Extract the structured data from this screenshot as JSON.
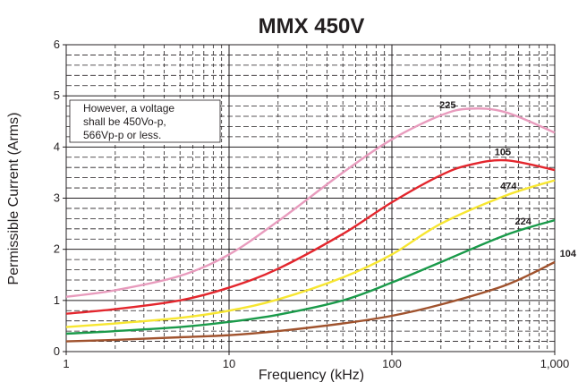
{
  "chart_data": {
    "type": "line",
    "title": "MMX 450V",
    "xlabel": "Frequency (kHz)",
    "ylabel": "Permissible Current (Arms)",
    "x_scale": "log",
    "xlim": [
      1,
      1000
    ],
    "ylim": [
      0,
      6
    ],
    "x_ticks": [
      {
        "value": 1,
        "label": "1"
      },
      {
        "value": 10,
        "label": "10"
      },
      {
        "value": 100,
        "label": "100"
      },
      {
        "value": 1000,
        "label": "1,000"
      }
    ],
    "y_ticks": [
      {
        "value": 0,
        "label": "0"
      },
      {
        "value": 1,
        "label": "1"
      },
      {
        "value": 2,
        "label": "2"
      },
      {
        "value": 3,
        "label": "3"
      },
      {
        "value": 4,
        "label": "4"
      },
      {
        "value": 5,
        "label": "5"
      },
      {
        "value": 6,
        "label": "6"
      }
    ],
    "grid": true,
    "annotation": {
      "lines": [
        "However, a voltage",
        "shall be 450Vo-p,",
        "566Vp-p or less."
      ],
      "position": "top-left"
    },
    "series": [
      {
        "name": "225",
        "color": "#e89bbd",
        "label_at": 220,
        "points": [
          [
            1,
            1.07
          ],
          [
            2,
            1.2
          ],
          [
            5,
            1.48
          ],
          [
            10,
            1.9
          ],
          [
            20,
            2.55
          ],
          [
            50,
            3.5
          ],
          [
            100,
            4.15
          ],
          [
            200,
            4.62
          ],
          [
            300,
            4.75
          ],
          [
            500,
            4.68
          ],
          [
            1000,
            4.28
          ]
        ]
      },
      {
        "name": "105",
        "color": "#e3262d",
        "label_at": 480,
        "points": [
          [
            1,
            0.74
          ],
          [
            2,
            0.83
          ],
          [
            5,
            1.0
          ],
          [
            10,
            1.25
          ],
          [
            20,
            1.62
          ],
          [
            50,
            2.3
          ],
          [
            100,
            2.92
          ],
          [
            200,
            3.45
          ],
          [
            300,
            3.65
          ],
          [
            500,
            3.74
          ],
          [
            1000,
            3.55
          ]
        ]
      },
      {
        "name": "474",
        "color": "#f7e631",
        "label_at": 520,
        "points": [
          [
            1,
            0.48
          ],
          [
            2,
            0.55
          ],
          [
            5,
            0.66
          ],
          [
            10,
            0.8
          ],
          [
            20,
            1.02
          ],
          [
            50,
            1.45
          ],
          [
            100,
            1.9
          ],
          [
            200,
            2.5
          ],
          [
            500,
            3.05
          ],
          [
            1000,
            3.35
          ]
        ]
      },
      {
        "name": "224",
        "color": "#1a9a4a",
        "label_at": 640,
        "points": [
          [
            1,
            0.35
          ],
          [
            2,
            0.4
          ],
          [
            5,
            0.48
          ],
          [
            10,
            0.58
          ],
          [
            20,
            0.72
          ],
          [
            50,
            1.0
          ],
          [
            100,
            1.35
          ],
          [
            200,
            1.75
          ],
          [
            500,
            2.28
          ],
          [
            1000,
            2.57
          ]
        ]
      },
      {
        "name": "104",
        "color": "#a0522d",
        "label_at": 1000,
        "points": [
          [
            1,
            0.2
          ],
          [
            2,
            0.23
          ],
          [
            5,
            0.28
          ],
          [
            10,
            0.32
          ],
          [
            20,
            0.4
          ],
          [
            50,
            0.55
          ],
          [
            100,
            0.7
          ],
          [
            200,
            0.92
          ],
          [
            500,
            1.3
          ],
          [
            1000,
            1.75
          ]
        ]
      }
    ]
  }
}
